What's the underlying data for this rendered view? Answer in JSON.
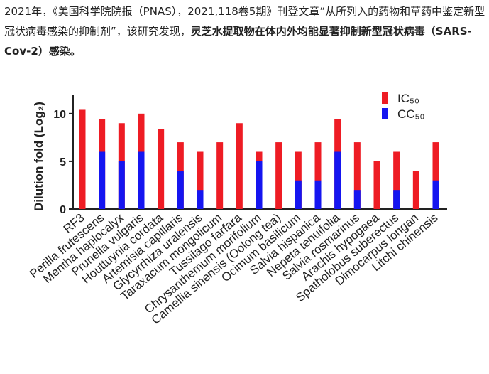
{
  "paragraph": {
    "text": "2021年，《美国科学院院报（PNAS），2021,118卷5期》刊登文章“从所列入的药物和草药中鉴定新型冠状病毒感染的抑制剂”，该研究发现，",
    "bold": "灵芝水提取物在体内外均能显著抑制新型冠状病毒（SARS-Cov-2）感染。"
  },
  "chart_data": {
    "type": "bar",
    "y_label": "Dilution fold (Log₂)",
    "categories": [
      "RF3",
      "Perilla frutescens",
      "Mentha haplocalyx",
      "Prunella vulgaris",
      "Houttuynia cordata",
      "Artemisia capillaris",
      "Glycyrrhiza uralensis",
      "Taraxacum mongolicum",
      "Tussilago farfara",
      "Chrysanthemum morifolium",
      "Camellia sinensis (Oolong tea)",
      "Ocimum basilicum",
      "Salvia hispanica",
      "Nepeta tenuifolia",
      "Salvia rosmarinus",
      "Arachis hypogaea",
      "Spatholobus suberectus",
      "Dimocarpus longan",
      "Litchi chinensis"
    ],
    "series": [
      {
        "name": "IC₅₀",
        "color": "#ee1c24",
        "values": [
          10.4,
          9.4,
          9,
          10,
          8.4,
          7,
          6,
          7,
          9,
          6,
          7,
          6,
          7,
          9.4,
          7,
          5,
          6,
          4,
          7
        ]
      },
      {
        "name": "CC₅₀",
        "color": "#1515f0",
        "values": [
          null,
          6,
          5,
          6,
          null,
          4,
          2,
          null,
          null,
          5,
          null,
          3,
          3,
          6,
          2,
          null,
          2,
          null,
          3
        ]
      }
    ],
    "ylim": [
      0,
      12
    ],
    "yticks": [
      0,
      5,
      10
    ],
    "legend": "top-right"
  }
}
